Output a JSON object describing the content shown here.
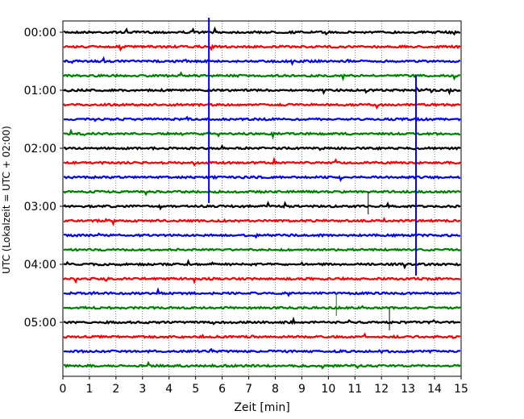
{
  "chart_data": {
    "type": "line",
    "title": "",
    "xlabel": "Zeit  [min]",
    "ylabel": "UTC (Lokalzeit = UTC + 02:00)",
    "xlim": [
      0,
      15
    ],
    "x_ticks": [
      "0",
      "1",
      "2",
      "3",
      "4",
      "5",
      "6",
      "7",
      "8",
      "9",
      "10",
      "11",
      "12",
      "13",
      "14",
      "15"
    ],
    "y_ticks": [
      "00:00",
      "01:00",
      "02:00",
      "03:00",
      "04:00",
      "05:00"
    ],
    "y_tick_rows": [
      0,
      4,
      8,
      12,
      16,
      20
    ],
    "row_interval_minutes": 15,
    "row_count": 24,
    "row_colors": [
      "#000000",
      "#ff0000",
      "#0000ff",
      "#008000"
    ],
    "grid": "vertical dotted at each minute",
    "events": [
      {
        "row": 0,
        "start_min": 5.5,
        "end_row": 12,
        "color": "#0000ff",
        "amplitude": 2
      },
      {
        "row": 4,
        "start_min": 13.3,
        "end_row": 17,
        "color": "#0000ff",
        "amplitude": 2
      },
      {
        "row": 12,
        "start_min": 11.5,
        "end_row": 12,
        "color": "#000000",
        "amplitude": 1
      },
      {
        "row": 20,
        "start_min": 12.3,
        "end_row": 20,
        "color": "#000000",
        "amplitude": 1
      },
      {
        "row": 19,
        "start_min": 10.3,
        "end_row": 19,
        "color": "#008000",
        "amplitude": 1
      }
    ]
  }
}
